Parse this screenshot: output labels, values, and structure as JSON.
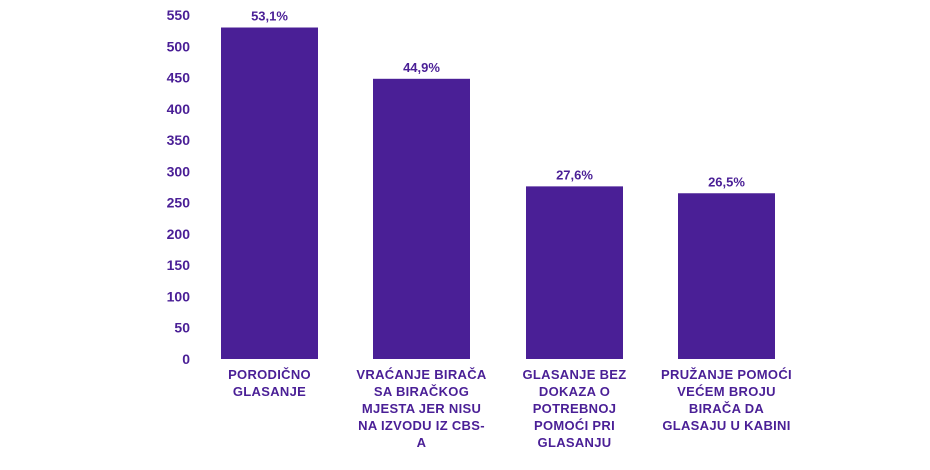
{
  "chart_data": {
    "type": "bar",
    "categories": [
      [
        "PORODIČNO",
        "GLASANJE"
      ],
      [
        "VRAĆANJE BIRAČA",
        "SA BIRAČKOG",
        "MJESTA JER NISU",
        "NA IZVODU IZ CBS-",
        "A"
      ],
      [
        "GLASANJE BEZ",
        "DOKAZA O",
        "POTREBNOJ",
        "POMOĆI PRI",
        "GLASANJU"
      ],
      [
        "PRUŽANJE POMOĆI",
        "VEĆEM BROJU",
        "BIRAČA DA",
        "GLASAJU U KABINI"
      ]
    ],
    "values": [
      530,
      448,
      276,
      265
    ],
    "data_labels": [
      "53,1%",
      "44,9%",
      "27,6%",
      "26,5%"
    ],
    "yticks": [
      "0",
      "50",
      "100",
      "150",
      "200",
      "250",
      "300",
      "350",
      "400",
      "450",
      "500",
      "550"
    ],
    "ylim": [
      0,
      550
    ],
    "grid": false,
    "colors": {
      "bar": "#4a1f96",
      "text": "#4a1f96"
    }
  }
}
